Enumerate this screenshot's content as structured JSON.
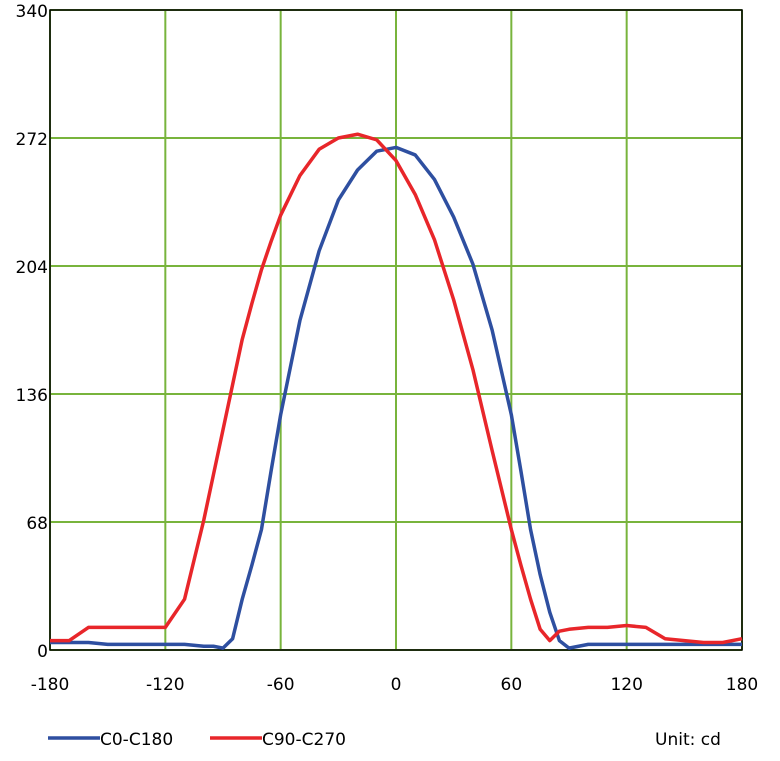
{
  "chart_data": {
    "type": "line",
    "x": [
      -180,
      -170,
      -160,
      -150,
      -140,
      -130,
      -120,
      -110,
      -100,
      -95,
      -90,
      -85,
      -80,
      -75,
      -70,
      -65,
      -60,
      -50,
      -40,
      -30,
      -20,
      -10,
      0,
      10,
      20,
      30,
      40,
      50,
      60,
      65,
      70,
      75,
      80,
      85,
      90,
      100,
      110,
      120,
      130,
      140,
      150,
      160,
      170,
      180
    ],
    "series": [
      {
        "name": "C0-C180",
        "color": "#2e4fa0",
        "values": [
          4,
          4,
          4,
          3,
          3,
          3,
          3,
          3,
          2,
          2,
          1,
          6,
          27,
          45,
          64,
          95,
          125,
          175,
          212,
          239,
          255,
          265,
          267,
          263,
          250,
          230,
          205,
          170,
          125,
          95,
          64,
          40,
          20,
          5,
          1,
          3,
          3,
          3,
          3,
          3,
          3,
          3,
          3,
          3
        ]
      },
      {
        "name": "C90-C270",
        "color": "#e8262a",
        "values": [
          5,
          5,
          12,
          12,
          12,
          12,
          12,
          27,
          69,
          93,
          117,
          141,
          165,
          184,
          202,
          217,
          231,
          252,
          266,
          272,
          274,
          271,
          260,
          242,
          218,
          186,
          149,
          106,
          64,
          45,
          27,
          11,
          5,
          10,
          11,
          12,
          12,
          13,
          12,
          6,
          5,
          4,
          4,
          6
        ]
      }
    ],
    "xlim": [
      -180,
      180
    ],
    "xticks": [
      -180,
      -120,
      -60,
      0,
      60,
      120,
      180
    ],
    "ylim": [
      0,
      340
    ],
    "yticks": [
      0,
      68,
      136,
      204,
      272,
      340
    ],
    "grid": true,
    "grid_color": "#78b43c",
    "annotation": "Unit: cd"
  }
}
